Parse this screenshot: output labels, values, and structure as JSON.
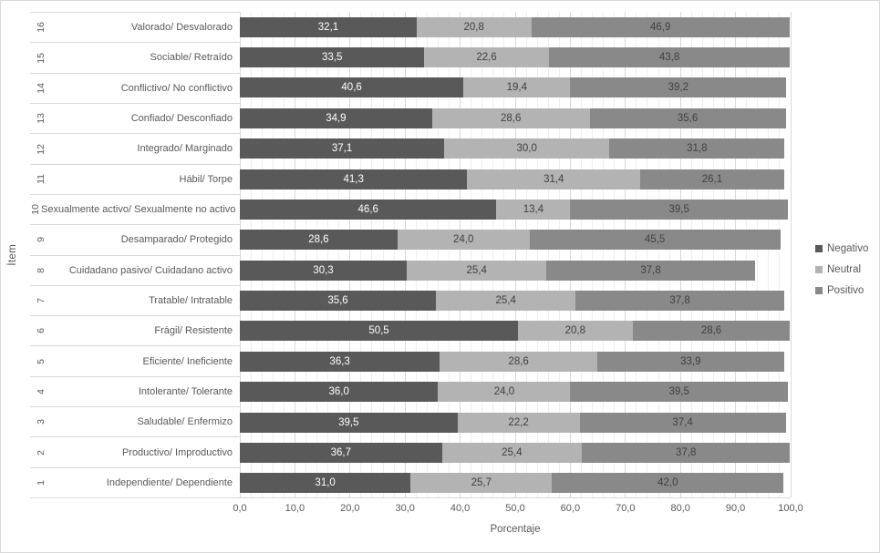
{
  "chart_data": {
    "type": "bar",
    "orientation": "horizontal",
    "stacked": true,
    "title": "",
    "xlabel": "Porcentaje",
    "ylabel": "Ítem",
    "xlim": [
      0,
      100
    ],
    "grid": true,
    "minor_grid_step": 2,
    "major_grid_step": 10,
    "decimal_separator": ",",
    "legend_position": "right",
    "x_tick_labels": [
      "0,0",
      "10,0",
      "20,0",
      "30,0",
      "40,0",
      "50,0",
      "60,0",
      "70,0",
      "80,0",
      "90,0",
      "100,0"
    ],
    "item_numbers": [
      "16",
      "15",
      "14",
      "13",
      "12",
      "11",
      "10",
      "9",
      "8",
      "7",
      "6",
      "5",
      "4",
      "3",
      "2",
      "1"
    ],
    "categories": [
      "Valorado/ Desvalorado",
      "Sociable/ Retraído",
      "Conflictivo/ No conflictivo",
      "Confiado/ Desconfiado",
      "Integrado/ Marginado",
      "Hábil/ Torpe",
      "Sexualmente activo/ Sexualmente no activo",
      "Desamparado/ Protegido",
      "Cuidadano pasivo/ Cuidadano activo",
      "Tratable/ Intratable",
      "Frágil/ Resistente",
      "Eficiente/ Ineficiente",
      "Intolerante/ Tolerante",
      "Saludable/ Enfermizo",
      "Productivo/ Improductivo",
      "Independiente/ Dependiente"
    ],
    "series": [
      {
        "name": "Negativo",
        "color": "#595959",
        "label_color": "#ffffff",
        "values": [
          32.1,
          33.5,
          40.6,
          34.9,
          37.1,
          41.3,
          46.6,
          28.6,
          30.3,
          35.6,
          50.5,
          36.3,
          36.0,
          39.5,
          36.7,
          31.0
        ]
      },
      {
        "name": "Neutral",
        "color": "#b3b3b3",
        "label_color": "#404040",
        "values": [
          20.8,
          22.6,
          19.4,
          28.6,
          30.0,
          31.4,
          13.4,
          24.0,
          25.4,
          25.4,
          20.8,
          28.6,
          24.0,
          22.2,
          25.4,
          25.7
        ]
      },
      {
        "name": "Positivo",
        "color": "#898989",
        "label_color": "#404040",
        "values": [
          46.9,
          43.8,
          39.2,
          35.6,
          31.8,
          26.1,
          39.5,
          45.5,
          37.8,
          37.8,
          28.6,
          33.9,
          39.5,
          37.4,
          37.8,
          42.0
        ]
      }
    ]
  }
}
